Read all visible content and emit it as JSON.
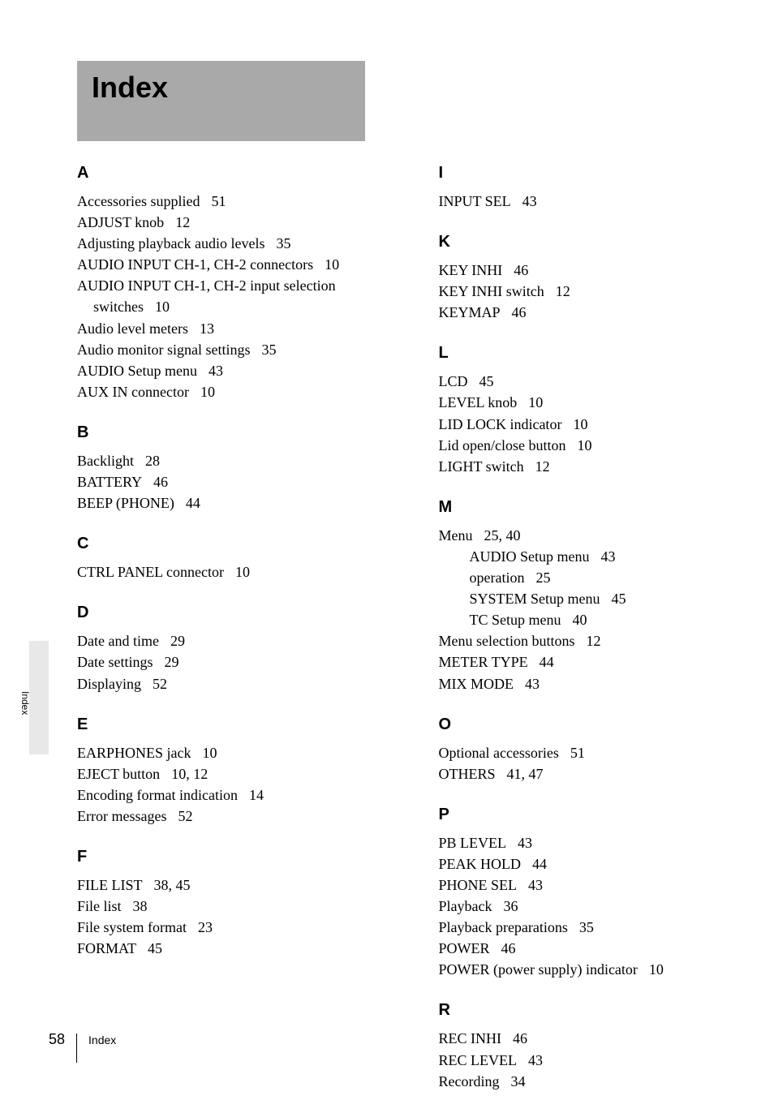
{
  "title": "Index",
  "side_tab": "Index",
  "footer": {
    "page": "58",
    "label": "Index"
  },
  "left_sections": [
    {
      "letter": "A",
      "entries": [
        {
          "term": "Accessories supplied",
          "pages": "51"
        },
        {
          "term": "ADJUST knob",
          "pages": "12"
        },
        {
          "term": "Adjusting playback audio levels",
          "pages": "35"
        },
        {
          "term": "AUDIO INPUT CH-1, CH-2 connectors",
          "pages": "10"
        },
        {
          "term": "AUDIO INPUT CH-1, CH-2 input selection switches",
          "pages": "10"
        },
        {
          "term": "Audio level meters",
          "pages": "13"
        },
        {
          "term": "Audio monitor signal settings",
          "pages": "35"
        },
        {
          "term": "AUDIO Setup menu",
          "pages": "43"
        },
        {
          "term": "AUX IN connector",
          "pages": "10"
        }
      ]
    },
    {
      "letter": "B",
      "entries": [
        {
          "term": "Backlight",
          "pages": "28"
        },
        {
          "term": "BATTERY",
          "pages": "46"
        },
        {
          "term": "BEEP (PHONE)",
          "pages": "44"
        }
      ]
    },
    {
      "letter": "C",
      "entries": [
        {
          "term": "CTRL PANEL connector",
          "pages": "10"
        }
      ]
    },
    {
      "letter": "D",
      "entries": [
        {
          "term": "Date and time",
          "pages": "29"
        },
        {
          "term": "Date settings",
          "pages": "29"
        },
        {
          "term": "Displaying",
          "pages": "52"
        }
      ]
    },
    {
      "letter": "E",
      "entries": [
        {
          "term": "EARPHONES jack",
          "pages": "10"
        },
        {
          "term": "EJECT button",
          "pages": "10, 12"
        },
        {
          "term": "Encoding format indication",
          "pages": "14"
        },
        {
          "term": "Error messages",
          "pages": "52"
        }
      ]
    },
    {
      "letter": "F",
      "entries": [
        {
          "term": "FILE LIST",
          "pages": "38, 45"
        },
        {
          "term": "File list",
          "pages": "38"
        },
        {
          "term": "File system format",
          "pages": "23"
        },
        {
          "term": "FORMAT",
          "pages": "45"
        }
      ]
    }
  ],
  "right_sections": [
    {
      "letter": "I",
      "entries": [
        {
          "term": "INPUT SEL",
          "pages": "43"
        }
      ]
    },
    {
      "letter": "K",
      "entries": [
        {
          "term": "KEY INHI",
          "pages": "46"
        },
        {
          "term": "KEY INHI switch",
          "pages": "12"
        },
        {
          "term": "KEYMAP",
          "pages": "46"
        }
      ]
    },
    {
      "letter": "L",
      "entries": [
        {
          "term": "LCD",
          "pages": "45"
        },
        {
          "term": "LEVEL knob",
          "pages": "10"
        },
        {
          "term": "LID LOCK indicator",
          "pages": "10"
        },
        {
          "term": "Lid open/close button",
          "pages": "10"
        },
        {
          "term": "LIGHT switch",
          "pages": "12"
        }
      ]
    },
    {
      "letter": "M",
      "entries": [
        {
          "term": "Menu",
          "pages": "25, 40"
        },
        {
          "term": "AUDIO Setup menu",
          "pages": "43",
          "sub": true
        },
        {
          "term": "operation",
          "pages": "25",
          "sub": true
        },
        {
          "term": "SYSTEM Setup menu",
          "pages": "45",
          "sub": true
        },
        {
          "term": "TC Setup menu",
          "pages": "40",
          "sub": true
        },
        {
          "term": "Menu selection buttons",
          "pages": "12"
        },
        {
          "term": "METER TYPE",
          "pages": "44"
        },
        {
          "term": "MIX MODE",
          "pages": "43"
        }
      ]
    },
    {
      "letter": "O",
      "entries": [
        {
          "term": "Optional accessories",
          "pages": "51"
        },
        {
          "term": "OTHERS",
          "pages": "41, 47"
        }
      ]
    },
    {
      "letter": "P",
      "entries": [
        {
          "term": "PB LEVEL",
          "pages": "43"
        },
        {
          "term": "PEAK HOLD",
          "pages": "44"
        },
        {
          "term": "PHONE SEL",
          "pages": "43"
        },
        {
          "term": "Playback",
          "pages": "36"
        },
        {
          "term": "Playback preparations",
          "pages": "35"
        },
        {
          "term": "POWER",
          "pages": "46"
        },
        {
          "term": "POWER (power supply) indicator",
          "pages": "10"
        }
      ]
    },
    {
      "letter": "R",
      "entries": [
        {
          "term": "REC INHI",
          "pages": "46"
        },
        {
          "term": "REC LEVEL",
          "pages": "43"
        },
        {
          "term": "Recording",
          "pages": "34"
        }
      ]
    }
  ]
}
